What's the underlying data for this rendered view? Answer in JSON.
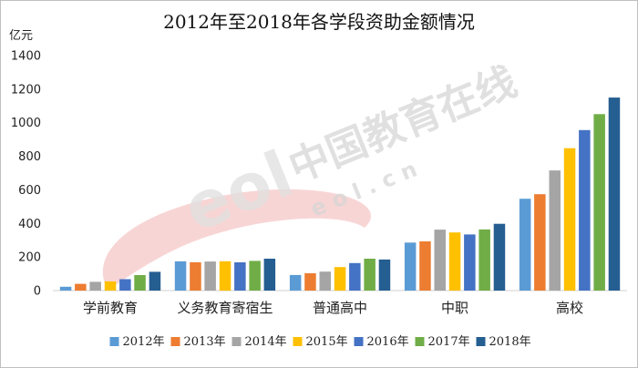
{
  "watermark": {
    "logo_text": "eol",
    "cn_text": "中国教育在线",
    "url_text": "e o l . c n"
  },
  "chart_data": {
    "type": "bar",
    "title": "2012年至2018年各学段资助金额情况",
    "ylabel": "亿元",
    "xlabel": "",
    "ylim": [
      0,
      1400
    ],
    "yticks": [
      0,
      200,
      400,
      600,
      800,
      1000,
      1200,
      1400
    ],
    "grid": false,
    "legend_position": "bottom",
    "categories": [
      "学前教育",
      "义务教育寄宿生",
      "普通高中",
      "中职",
      "高校"
    ],
    "series": [
      {
        "name": "2012年",
        "color": "#5b9bd5",
        "values": [
          23,
          174,
          93,
          286,
          547
        ]
      },
      {
        "name": "2013年",
        "color": "#ed7d31",
        "values": [
          40,
          169,
          103,
          293,
          574
        ]
      },
      {
        "name": "2014年",
        "color": "#a5a5a5",
        "values": [
          52,
          173,
          113,
          363,
          716
        ]
      },
      {
        "name": "2015年",
        "color": "#ffc000",
        "values": [
          55,
          175,
          140,
          346,
          848
        ]
      },
      {
        "name": "2016年",
        "color": "#4472c4",
        "values": [
          68,
          168,
          164,
          334,
          956
        ]
      },
      {
        "name": "2017年",
        "color": "#70ad47",
        "values": [
          92,
          177,
          190,
          364,
          1051
        ]
      },
      {
        "name": "2018年",
        "color": "#255e91",
        "values": [
          112,
          190,
          185,
          398,
          1150
        ]
      }
    ]
  }
}
